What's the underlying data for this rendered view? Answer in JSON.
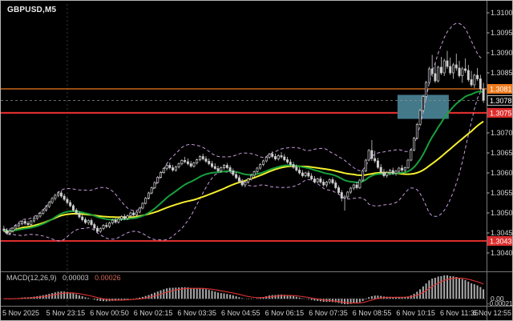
{
  "window": {
    "symbol_label": "GBPUSD,M5"
  },
  "chart_data": {
    "type": "candlestick",
    "symbol": "GBPUSD",
    "timeframe": "M5",
    "price_base": 1.3,
    "pip_size": 0.0001,
    "y_axis_range": [
      1.3038,
      1.3102
    ],
    "price_axis": {
      "ticks": [
        "1.3100",
        "1.3095",
        "1.3090",
        "1.3085",
        "1.3070",
        "1.3065",
        "1.3060",
        "1.3055",
        "1.3050",
        "1.3045",
        "1.3040"
      ]
    },
    "x_tick_labels": [
      "5 Nov 2025",
      "5 Nov 23:15",
      "6 Nov 00:50",
      "6 Nov 02:15",
      "6 Nov 03:35",
      "6 Nov 04:55",
      "6 Nov 06:15",
      "6 Nov 07:35",
      "6 Nov 08:55",
      "6 Nov 10:15",
      "6 Nov 11:35",
      "6 Nov 12:55"
    ],
    "levels": [
      {
        "label": "1.3081",
        "value": 1.3081,
        "color": "#f07a1e",
        "width": 1.3,
        "role": "resistance"
      },
      {
        "label": "1.3075",
        "value": 1.3075,
        "color": "#dd2e2e",
        "width": 2.2,
        "role": "support"
      },
      {
        "label": "1.3043",
        "value": 1.3043,
        "color": "#dd2e2e",
        "width": 2.0,
        "role": "support"
      }
    ],
    "current_price": {
      "label": "1.3078",
      "value": 1.30781
    },
    "zone": {
      "start_index": 131,
      "end_index": 147,
      "top_value": 1.30795,
      "bottom_value": 1.30735,
      "color": "#44798a"
    },
    "day_separator_index": 21,
    "indicators": {
      "bollinger": {
        "period": 20,
        "deviation": 2,
        "color": "#c79bdb"
      },
      "ma_fast": {
        "period": 24,
        "type": "ema",
        "color": "#18a03c"
      },
      "ma_slow": {
        "period": 44,
        "type": "sma",
        "color": "#f5ef2e"
      },
      "macd": {
        "label": "MACD(12,26,9)",
        "value_main": "0.00003",
        "value_signal": "0.00026",
        "hist_color": "#a8a8a8",
        "signal_color": "#e03232",
        "axis_zero_label": "0.00",
        "axis_min_label": "-0.00021"
      }
    },
    "candles_ohlc_pips": [
      [
        46.0,
        46.8,
        45.2,
        45.6
      ],
      [
        45.6,
        46.2,
        44.6,
        44.9
      ],
      [
        44.9,
        45.8,
        44.4,
        45.5
      ],
      [
        45.5,
        46.5,
        45.1,
        46.2
      ],
      [
        46.2,
        47.0,
        45.8,
        46.8
      ],
      [
        46.8,
        47.6,
        46.3,
        47.3
      ],
      [
        47.3,
        48.2,
        46.9,
        47.9
      ],
      [
        47.9,
        48.4,
        47.0,
        47.4
      ],
      [
        47.4,
        48.0,
        46.8,
        47.1
      ],
      [
        47.1,
        48.2,
        46.9,
        48.0
      ],
      [
        48.0,
        49.0,
        47.6,
        48.7
      ],
      [
        48.7,
        49.5,
        48.2,
        49.2
      ],
      [
        49.2,
        50.2,
        48.8,
        49.9
      ],
      [
        49.9,
        51.0,
        49.5,
        50.7
      ],
      [
        50.7,
        52.0,
        50.3,
        51.6
      ],
      [
        51.6,
        53.0,
        51.2,
        52.6
      ],
      [
        52.6,
        54.0,
        52.2,
        53.6
      ],
      [
        53.6,
        54.8,
        53.1,
        54.4
      ],
      [
        54.4,
        55.4,
        53.9,
        55.0
      ],
      [
        55.0,
        55.6,
        53.8,
        54.2
      ],
      [
        54.2,
        54.8,
        53.0,
        53.4
      ],
      [
        53.4,
        53.9,
        52.2,
        52.6
      ],
      [
        52.6,
        53.2,
        51.4,
        51.8
      ],
      [
        51.8,
        52.2,
        50.3,
        50.7
      ],
      [
        50.7,
        51.2,
        49.5,
        49.9
      ],
      [
        49.9,
        50.4,
        48.6,
        49.0
      ],
      [
        49.0,
        49.6,
        47.9,
        48.3
      ],
      [
        48.3,
        48.9,
        47.2,
        47.6
      ],
      [
        47.6,
        48.4,
        47.0,
        48.1
      ],
      [
        48.1,
        48.6,
        46.7,
        47.1
      ],
      [
        47.1,
        47.6,
        45.8,
        46.2
      ],
      [
        46.2,
        46.8,
        45.0,
        45.4
      ],
      [
        45.4,
        46.4,
        45.0,
        46.1
      ],
      [
        46.1,
        47.2,
        45.7,
        46.9
      ],
      [
        46.9,
        47.6,
        46.2,
        46.6
      ],
      [
        46.6,
        47.8,
        46.2,
        47.5
      ],
      [
        47.5,
        48.5,
        47.1,
        48.2
      ],
      [
        48.2,
        48.8,
        47.3,
        47.7
      ],
      [
        47.7,
        48.8,
        47.3,
        48.5
      ],
      [
        48.5,
        49.4,
        48.0,
        49.1
      ],
      [
        49.1,
        49.7,
        48.2,
        48.6
      ],
      [
        48.6,
        49.6,
        48.2,
        49.3
      ],
      [
        49.3,
        50.3,
        48.9,
        50.0
      ],
      [
        50.0,
        50.6,
        49.1,
        49.5
      ],
      [
        49.5,
        50.5,
        49.1,
        50.2
      ],
      [
        50.2,
        51.5,
        49.9,
        51.2
      ],
      [
        51.2,
        52.7,
        50.9,
        52.4
      ],
      [
        52.4,
        54.0,
        52.1,
        53.7
      ],
      [
        53.7,
        55.3,
        53.4,
        55.0
      ],
      [
        55.0,
        56.6,
        54.7,
        56.3
      ],
      [
        56.3,
        57.9,
        56.0,
        57.6
      ],
      [
        57.6,
        59.2,
        57.3,
        58.9
      ],
      [
        58.9,
        60.4,
        58.6,
        60.1
      ],
      [
        60.1,
        61.4,
        59.8,
        61.1
      ],
      [
        61.1,
        62.3,
        60.6,
        61.9
      ],
      [
        61.9,
        62.6,
        60.9,
        61.3
      ],
      [
        61.3,
        62.0,
        60.3,
        60.7
      ],
      [
        60.7,
        61.8,
        60.3,
        61.5
      ],
      [
        61.5,
        62.6,
        61.1,
        62.3
      ],
      [
        62.3,
        63.4,
        61.9,
        63.1
      ],
      [
        63.1,
        64.0,
        62.4,
        62.8
      ],
      [
        62.8,
        63.6,
        61.9,
        62.3
      ],
      [
        62.3,
        63.0,
        61.3,
        61.7
      ],
      [
        61.7,
        62.8,
        61.3,
        62.5
      ],
      [
        62.5,
        63.6,
        62.1,
        63.3
      ],
      [
        63.3,
        64.4,
        62.9,
        64.1
      ],
      [
        64.1,
        64.8,
        63.1,
        63.5
      ],
      [
        63.5,
        64.2,
        62.5,
        62.9
      ],
      [
        62.9,
        63.6,
        61.9,
        62.3
      ],
      [
        62.3,
        63.0,
        61.2,
        61.6
      ],
      [
        61.6,
        62.4,
        60.8,
        61.1
      ],
      [
        61.1,
        61.8,
        60.1,
        60.5
      ],
      [
        60.5,
        61.6,
        60.1,
        61.3
      ],
      [
        61.3,
        62.2,
        60.8,
        61.9
      ],
      [
        61.9,
        62.5,
        60.9,
        61.3
      ],
      [
        61.3,
        61.9,
        60.1,
        60.5
      ],
      [
        60.5,
        61.1,
        59.2,
        59.6
      ],
      [
        59.6,
        60.2,
        58.4,
        58.8
      ],
      [
        58.8,
        59.4,
        57.5,
        57.9
      ],
      [
        57.9,
        58.5,
        56.6,
        57.0
      ],
      [
        57.0,
        58.0,
        56.4,
        57.7
      ],
      [
        57.7,
        58.8,
        57.3,
        58.5
      ],
      [
        58.5,
        59.7,
        58.1,
        59.4
      ],
      [
        59.4,
        60.6,
        59.0,
        60.3
      ],
      [
        60.3,
        61.5,
        59.9,
        61.2
      ],
      [
        61.2,
        62.4,
        60.8,
        62.1
      ],
      [
        62.1,
        63.3,
        61.7,
        63.0
      ],
      [
        63.0,
        64.2,
        62.6,
        63.9
      ],
      [
        63.9,
        65.0,
        63.5,
        64.7
      ],
      [
        64.7,
        65.4,
        63.7,
        64.1
      ],
      [
        64.1,
        64.8,
        63.1,
        63.5
      ],
      [
        63.5,
        64.6,
        63.1,
        64.3
      ],
      [
        64.3,
        65.2,
        63.6,
        64.0
      ],
      [
        64.0,
        64.7,
        62.9,
        63.3
      ],
      [
        63.3,
        64.0,
        62.3,
        62.7
      ],
      [
        62.7,
        63.4,
        61.7,
        62.1
      ],
      [
        62.1,
        62.8,
        61.0,
        61.4
      ],
      [
        61.4,
        62.1,
        60.3,
        60.7
      ],
      [
        60.7,
        61.4,
        59.6,
        60.0
      ],
      [
        60.0,
        60.7,
        58.9,
        59.3
      ],
      [
        59.3,
        60.3,
        58.9,
        60.0
      ],
      [
        60.0,
        60.6,
        58.8,
        59.2
      ],
      [
        59.2,
        59.9,
        58.1,
        58.5
      ],
      [
        58.5,
        59.2,
        57.4,
        57.8
      ],
      [
        57.8,
        58.8,
        57.4,
        58.5
      ],
      [
        58.5,
        59.1,
        57.3,
        57.7
      ],
      [
        57.7,
        58.4,
        56.6,
        57.0
      ],
      [
        57.0,
        58.0,
        56.4,
        57.7
      ],
      [
        57.7,
        58.6,
        57.2,
        58.3
      ],
      [
        58.3,
        58.9,
        57.1,
        57.5
      ],
      [
        57.5,
        58.1,
        55.9,
        56.3
      ],
      [
        56.3,
        56.9,
        54.7,
        55.1
      ],
      [
        55.1,
        55.7,
        52.9,
        53.7
      ],
      [
        53.7,
        54.5,
        50.6,
        54.0
      ],
      [
        54.0,
        55.5,
        53.6,
        55.2
      ],
      [
        55.2,
        56.5,
        54.8,
        56.2
      ],
      [
        56.2,
        57.3,
        55.7,
        57.0
      ],
      [
        57.0,
        57.8,
        55.9,
        56.3
      ],
      [
        56.3,
        58.5,
        56.0,
        58.2
      ],
      [
        58.2,
        60.8,
        57.9,
        60.5
      ],
      [
        60.5,
        63.5,
        60.2,
        63.2
      ],
      [
        63.2,
        66.0,
        62.9,
        65.6
      ],
      [
        65.6,
        68.2,
        63.0,
        63.6
      ],
      [
        63.6,
        65.5,
        62.5,
        63.0
      ],
      [
        63.0,
        63.8,
        61.0,
        61.4
      ],
      [
        61.4,
        62.2,
        59.8,
        60.2
      ],
      [
        60.2,
        61.0,
        58.9,
        59.3
      ],
      [
        59.3,
        60.5,
        58.8,
        60.1
      ],
      [
        60.1,
        61.0,
        59.4,
        60.6
      ],
      [
        60.6,
        61.3,
        59.5,
        59.9
      ],
      [
        59.9,
        60.8,
        59.3,
        60.4
      ],
      [
        60.4,
        61.5,
        60.0,
        61.2
      ],
      [
        61.2,
        62.0,
        60.3,
        60.7
      ],
      [
        60.7,
        61.6,
        60.2,
        61.3
      ],
      [
        61.3,
        63.5,
        61.0,
        63.2
      ],
      [
        63.2,
        66.0,
        62.9,
        65.7
      ],
      [
        65.7,
        69.0,
        65.4,
        68.7
      ],
      [
        68.7,
        72.5,
        68.4,
        72.1
      ],
      [
        72.1,
        76.0,
        71.7,
        75.6
      ],
      [
        75.6,
        79.5,
        75.2,
        79.1
      ],
      [
        79.1,
        83.0,
        78.0,
        82.6
      ],
      [
        82.6,
        86.5,
        82.2,
        86.0
      ],
      [
        86.0,
        89.5,
        84.0,
        84.8
      ],
      [
        84.8,
        87.5,
        82.5,
        83.0
      ],
      [
        83.0,
        86.8,
        82.6,
        86.4
      ],
      [
        86.4,
        89.0,
        84.5,
        85.0
      ],
      [
        85.0,
        88.5,
        84.2,
        88.0
      ],
      [
        88.0,
        90.5,
        86.0,
        86.6
      ],
      [
        86.6,
        88.8,
        84.5,
        85.0
      ],
      [
        85.0,
        87.5,
        83.5,
        87.0
      ],
      [
        87.0,
        89.8,
        85.5,
        86.2
      ],
      [
        86.2,
        88.0,
        83.8,
        84.3
      ],
      [
        84.3,
        86.5,
        82.5,
        86.0
      ],
      [
        86.0,
        88.6,
        85.0,
        85.6
      ],
      [
        85.6,
        87.0,
        82.8,
        83.3
      ],
      [
        83.3,
        85.5,
        81.5,
        82.0
      ],
      [
        82.0,
        84.8,
        81.2,
        84.4
      ],
      [
        84.4,
        86.2,
        83.0,
        83.5
      ],
      [
        83.5,
        84.5,
        80.5,
        81.0
      ],
      [
        81.0,
        82.5,
        77.5,
        78.1
      ]
    ]
  }
}
